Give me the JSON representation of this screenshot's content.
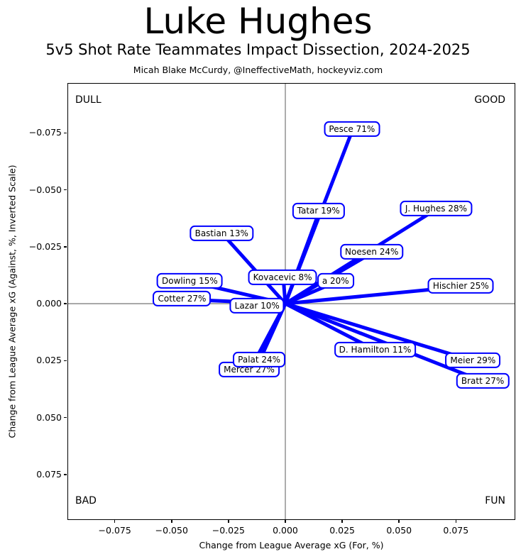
{
  "header": {
    "title": "Luke Hughes",
    "subtitle": "5v5 Shot Rate Teammates Impact Dissection, 2024-2025",
    "credit": "Micah Blake McCurdy, @IneffectiveMath, hockeyviz.com"
  },
  "chart_data": {
    "type": "scatter",
    "title": "Luke Hughes",
    "subtitle": "5v5 Shot Rate Teammates Impact Dissection, 2024-2025",
    "xlabel": "Change from League Average xG (For, %)",
    "ylabel": "Change from League Average xG (Against, %, Inverted Scale)",
    "xlim": [
      -0.0955,
      0.1008
    ],
    "ylim": [
      -0.0966,
      0.0947
    ],
    "y_axis_inverted": true,
    "grid": false,
    "line_color": "#0000ff",
    "zero_line_color": "#808080",
    "origin": [
      0,
      0
    ],
    "corner_labels": {
      "top_left": "DULL",
      "top_right": "GOOD",
      "bottom_left": "BAD",
      "bottom_right": "FUN"
    },
    "x_ticks": [
      {
        "value": -0.075,
        "label": "−0.075"
      },
      {
        "value": -0.05,
        "label": "−0.050"
      },
      {
        "value": -0.025,
        "label": "−0.025"
      },
      {
        "value": 0.0,
        "label": "0.000"
      },
      {
        "value": 0.025,
        "label": "0.025"
      },
      {
        "value": 0.05,
        "label": "0.050"
      },
      {
        "value": 0.075,
        "label": "0.075"
      }
    ],
    "y_ticks": [
      {
        "value": -0.075,
        "label": "−0.075"
      },
      {
        "value": -0.05,
        "label": "−0.050"
      },
      {
        "value": -0.025,
        "label": "−0.025"
      },
      {
        "value": 0.0,
        "label": "0.000"
      },
      {
        "value": 0.025,
        "label": "0.025"
      },
      {
        "value": 0.05,
        "label": "0.050"
      },
      {
        "value": 0.075,
        "label": "0.075"
      }
    ],
    "points": [
      {
        "label": "Pesce 71%",
        "x": 0.0296,
        "y": -0.0764
      },
      {
        "label": "Tatar 19%",
        "x": 0.0149,
        "y": -0.0404
      },
      {
        "label": "J. Hughes 28%",
        "x": 0.0666,
        "y": -0.0416
      },
      {
        "label": "Bastian 13%",
        "x": -0.0277,
        "y": -0.0307
      },
      {
        "label": "Noesen 24%",
        "x": 0.0383,
        "y": -0.0224
      },
      {
        "label": "a 20%",
        "x": 0.0224,
        "y": -0.0096
      },
      {
        "label": "Kovacevic 8%",
        "x": -0.0009,
        "y": -0.0112
      },
      {
        "label": "Hischier 25%",
        "x": 0.0775,
        "y": -0.0075
      },
      {
        "label": "Dowling 15%",
        "x": -0.0417,
        "y": -0.0096
      },
      {
        "label": "Cotter 27%",
        "x": -0.0451,
        "y": -0.0019
      },
      {
        "label": "Lazar 10%",
        "x": -0.0121,
        "y": 0.0012
      },
      {
        "label": "D. Hamilton 11%",
        "x": 0.0398,
        "y": 0.0205
      },
      {
        "label": "Meier 29%",
        "x": 0.0828,
        "y": 0.0252
      },
      {
        "label": "Bratt 27%",
        "x": 0.0871,
        "y": 0.0342
      },
      {
        "label": "Mercer 27%",
        "x": -0.0156,
        "y": 0.0292
      },
      {
        "label": "Palat 24%",
        "x": -0.0112,
        "y": 0.0248
      }
    ]
  }
}
